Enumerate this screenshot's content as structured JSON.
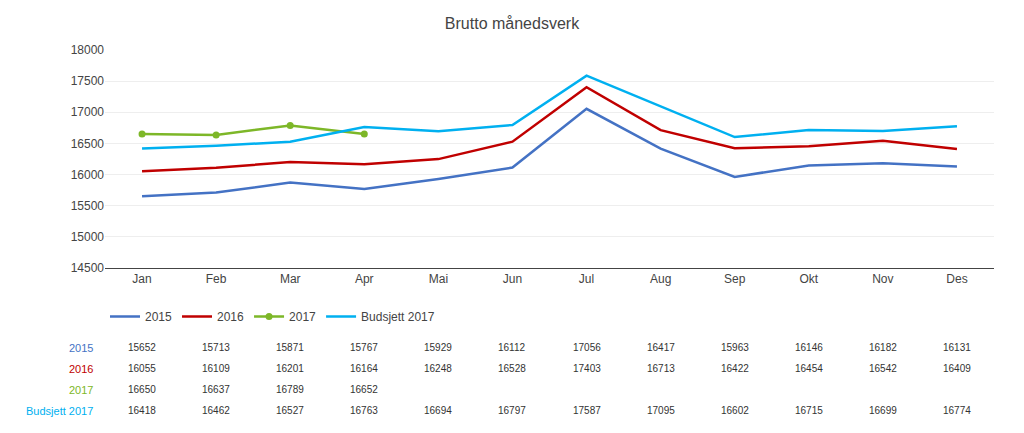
{
  "chart_data": {
    "type": "line",
    "title": "Brutto månedsverk",
    "categories": [
      "Jan",
      "Feb",
      "Mar",
      "Apr",
      "Mai",
      "Jun",
      "Jul",
      "Aug",
      "Sep",
      "Okt",
      "Nov",
      "Des"
    ],
    "series": [
      {
        "name": "2015",
        "color": "#4472C4",
        "values": [
          15652,
          15713,
          15871,
          15767,
          15929,
          16112,
          17056,
          16417,
          15963,
          16146,
          16182,
          16131
        ]
      },
      {
        "name": "2016",
        "color": "#C00000",
        "values": [
          16055,
          16109,
          16201,
          16164,
          16248,
          16528,
          17403,
          16713,
          16422,
          16454,
          16542,
          16409
        ]
      },
      {
        "name": "2017",
        "color": "#7DB728",
        "marker": "circle",
        "values": [
          16650,
          16637,
          16789,
          16652,
          null,
          null,
          null,
          null,
          null,
          null,
          null,
          null
        ]
      },
      {
        "name": "Budsjett 2017",
        "color": "#00B0F0",
        "values": [
          16418,
          16462,
          16527,
          16763,
          16694,
          16797,
          17587,
          17095,
          16602,
          16715,
          16699,
          16774
        ]
      }
    ],
    "ylim": [
      14500,
      18000
    ],
    "yticks": [
      14500,
      15000,
      15500,
      16000,
      16500,
      17000,
      17500,
      18000
    ],
    "grid": true
  }
}
